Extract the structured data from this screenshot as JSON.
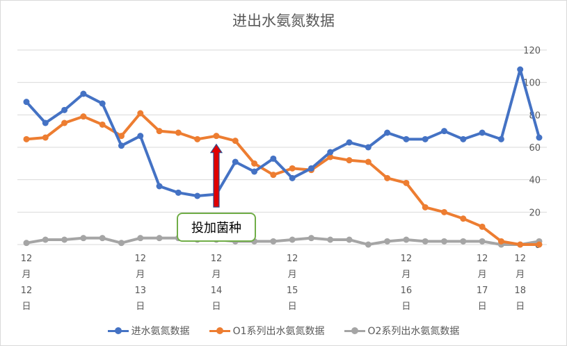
{
  "chart_data": {
    "type": "line",
    "title": "进出水氨氮数据",
    "ylim": [
      0,
      120
    ],
    "yticks": [
      0,
      20,
      40,
      60,
      80,
      100,
      120
    ],
    "grid": true,
    "legend_position": "bottom",
    "x_date_labels": [
      {
        "index": 0,
        "lines": [
          "12",
          "月",
          "12",
          "日"
        ]
      },
      {
        "index": 6,
        "lines": [
          "12",
          "月",
          "13",
          "日"
        ]
      },
      {
        "index": 10,
        "lines": [
          "12",
          "月",
          "14",
          "日"
        ]
      },
      {
        "index": 14,
        "lines": [
          "12",
          "月",
          "15",
          "日"
        ]
      },
      {
        "index": 20,
        "lines": [
          "12",
          "月",
          "16",
          "日"
        ]
      },
      {
        "index": 24,
        "lines": [
          "12",
          "月",
          "17",
          "日"
        ]
      },
      {
        "index": 26,
        "lines": [
          "12",
          "月",
          "18",
          "日"
        ]
      }
    ],
    "series": [
      {
        "name": "进水氨氮数据",
        "color": "#4472c4",
        "values": [
          88,
          75,
          83,
          93,
          87,
          61,
          67,
          36,
          32,
          30,
          31,
          51,
          45,
          53,
          41,
          47,
          57,
          63,
          60,
          69,
          65,
          65,
          70,
          65,
          69,
          65,
          108,
          66
        ]
      },
      {
        "name": "O1系列出水氨氮数据",
        "color": "#ed7d31",
        "values": [
          65,
          66,
          75,
          79,
          74,
          67,
          81,
          70,
          69,
          65,
          67,
          64,
          50,
          43,
          47,
          46,
          54,
          52,
          51,
          41,
          38,
          23,
          20,
          16,
          11,
          2,
          0,
          0
        ]
      },
      {
        "name": "O2系列出水氨氮数据",
        "color": "#a5a5a5",
        "values": [
          1,
          3,
          3,
          4,
          4,
          1,
          4,
          4,
          4,
          3,
          3,
          2,
          2,
          2,
          3,
          4,
          3,
          3,
          0,
          2,
          3,
          2,
          2,
          2,
          2,
          0,
          0,
          2
        ]
      }
    ],
    "annotation": {
      "text": "投加菌种",
      "arrow_index": 10,
      "arrow_color": "#e00000"
    }
  }
}
